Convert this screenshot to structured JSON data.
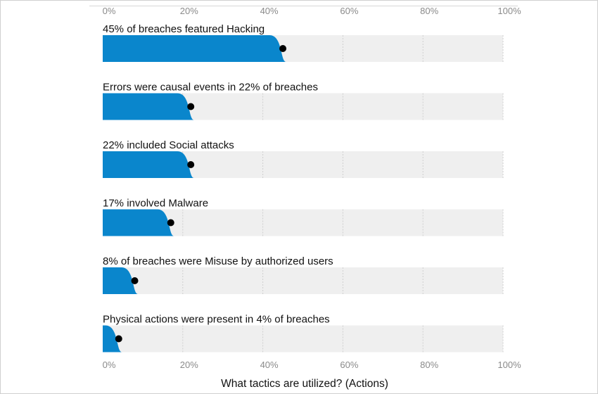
{
  "chart_data": {
    "type": "bar",
    "orientation": "horizontal",
    "categories": [
      "45% of breaches featured Hacking",
      "Errors were causal events in 22% of breaches",
      "22% included Social attacks",
      "17% involved Malware",
      "8% of breaches were Misuse by authorized users",
      "Physical actions were present in 4% of breaches"
    ],
    "values": [
      45,
      22,
      22,
      17,
      8,
      4
    ],
    "xlim": [
      0,
      100
    ],
    "x_ticks": [
      "0%",
      "20%",
      "40%",
      "60%",
      "80%",
      "100%"
    ],
    "xlabel": "What tactics are utilized? (Actions)",
    "grid": true,
    "colors": {
      "bar": "#0a86cc",
      "track": "#efefef",
      "marker": "#000000",
      "grid": "#cfcfcf",
      "tick_text": "#8a8a8a"
    }
  }
}
